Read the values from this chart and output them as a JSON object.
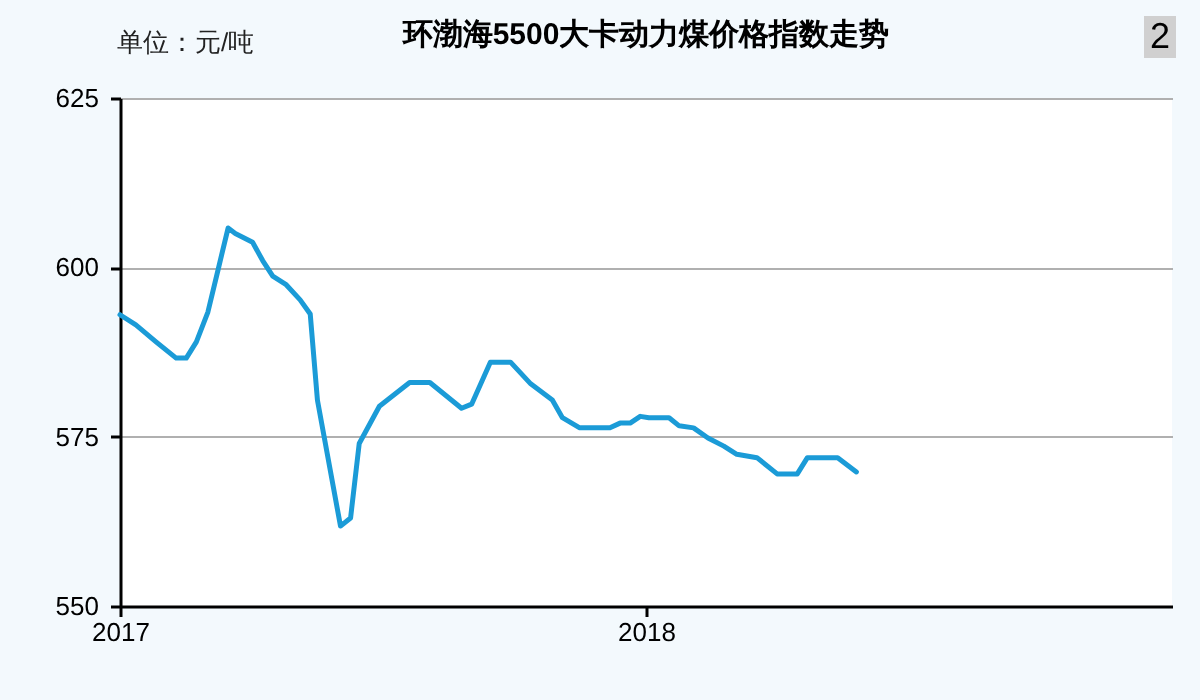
{
  "chart_data": {
    "type": "line",
    "title": "环渤海5500大卡动力煤价格指数走势",
    "ylabel": "单位：元/吨",
    "annotations": [
      "2"
    ],
    "x": [
      "2017-01-01",
      "2017-01-12",
      "2017-01-26",
      "2017-02-09",
      "2017-02-16",
      "2017-02-23",
      "2017-03-03",
      "2017-03-10",
      "2017-03-17",
      "2017-03-22",
      "2017-04-03",
      "2017-04-10",
      "2017-04-17",
      "2017-04-26",
      "2017-05-06",
      "2017-05-13",
      "2017-05-18",
      "2017-06-03",
      "2017-06-10",
      "2017-06-16",
      "2017-06-30",
      "2017-07-21",
      "2017-08-04",
      "2017-08-26",
      "2017-09-02",
      "2017-09-15",
      "2017-09-29",
      "2017-10-13",
      "2017-10-28",
      "2017-11-04",
      "2017-11-16",
      "2017-12-07",
      "2017-12-14",
      "2017-12-21",
      "2017-12-28",
      "2018-01-03",
      "2018-01-17",
      "2018-01-24",
      "2018-02-03",
      "2018-02-13",
      "2018-02-24",
      "2018-03-05",
      "2018-03-19",
      "2018-04-02",
      "2018-04-16",
      "2018-04-23",
      "2018-05-14",
      "2018-05-27"
    ],
    "series": [
      {
        "color": "#1b9bd7",
        "values": [
          593,
          591.5,
          589,
          586.6,
          586.6,
          589,
          593.4,
          599.6,
          605.8,
          605,
          603.7,
          601,
          598.7,
          597.5,
          595.2,
          593.1,
          580.4,
          561.8,
          563,
          574,
          579.5,
          583,
          583,
          579.2,
          579.8,
          586,
          586,
          582.8,
          580.4,
          577.8,
          576.3,
          576.3,
          577,
          577,
          578,
          577.8,
          577.8,
          576.6,
          576.3,
          574.8,
          573.6,
          572.4,
          571.9,
          569.5,
          569.5,
          571.9,
          571.9,
          569.8
        ]
      }
    ],
    "xlim": [
      "2017-01-01",
      "2019-01-01"
    ],
    "xticks": [
      "2017",
      "2018"
    ],
    "ylim": [
      550,
      625
    ],
    "yticks": [
      550,
      575,
      600,
      625
    ],
    "grid": "y",
    "line_style": "solid",
    "marker": "none"
  }
}
